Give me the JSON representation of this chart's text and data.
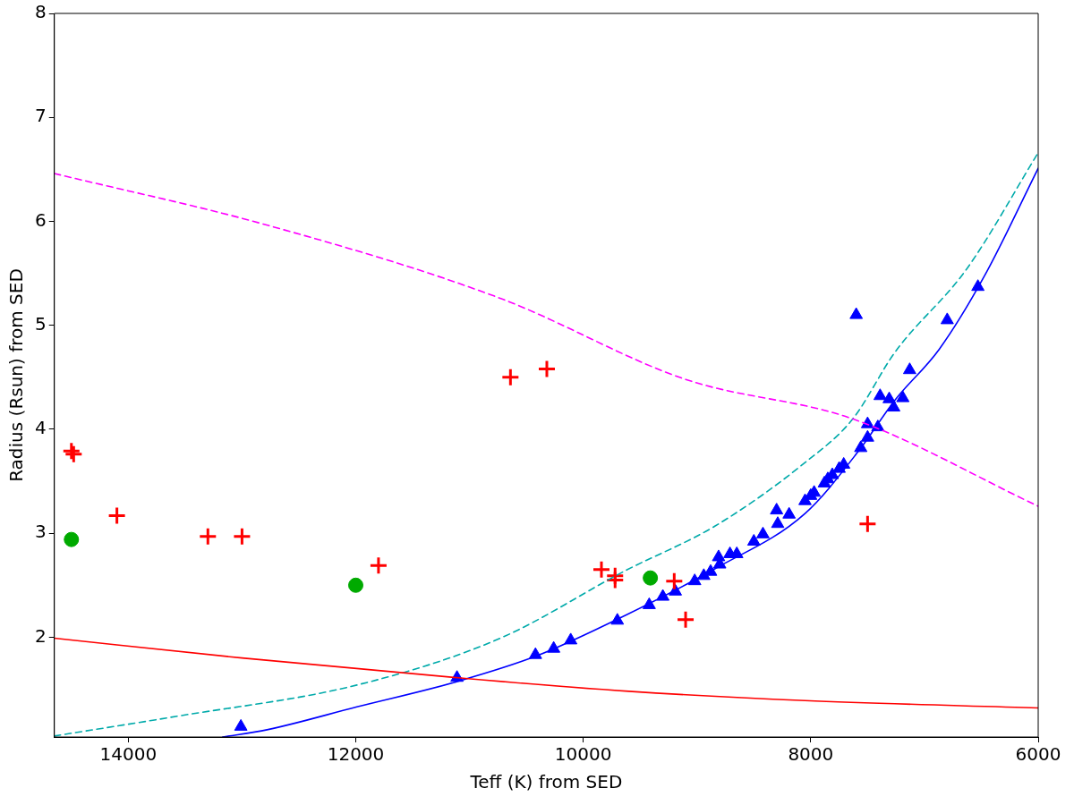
{
  "chart_data": {
    "type": "scatter",
    "xlabel": "Teff (K) from SED",
    "ylabel": "Radius (Rsun) from SED",
    "xlim": [
      14650,
      6000
    ],
    "ylim": [
      1.04,
      8
    ],
    "xticks": [
      14000,
      12000,
      10000,
      8000,
      6000
    ],
    "yticks": [
      2,
      3,
      4,
      5,
      6,
      7,
      8
    ],
    "series": [
      {
        "type": "line",
        "color": "#ff0000",
        "line_style": "solid",
        "marker": "none",
        "x": [
          14650,
          13000,
          11100,
          9600,
          8050,
          6000
        ],
        "values": [
          1.99,
          1.8,
          1.61,
          1.48,
          1.39,
          1.32
        ]
      },
      {
        "type": "line",
        "color": "#ff00ff",
        "line_style": "dashed",
        "marker": "none",
        "x": [
          14650,
          12800,
          10730,
          9100,
          7630,
          6000
        ],
        "values": [
          6.46,
          5.97,
          5.26,
          4.48,
          4.1,
          3.26
        ]
      },
      {
        "type": "line",
        "color": "#00aaaa",
        "line_style": "dashed",
        "marker": "none",
        "x": [
          14650,
          13570,
          11990,
          10730,
          9630,
          8840,
          8050,
          7630,
          7260,
          6630,
          6000
        ],
        "values": [
          1.05,
          1.24,
          1.54,
          1.99,
          2.64,
          3.07,
          3.68,
          4.1,
          4.74,
          5.54,
          6.66
        ]
      },
      {
        "type": "line",
        "color": "#0000ff",
        "line_style": "solid",
        "marker": "none",
        "x": [
          13170,
          12780,
          11990,
          11120,
          10410,
          9630,
          8840,
          8050,
          7580,
          7260,
          6870,
          6470,
          6000
        ],
        "values": [
          1.04,
          1.11,
          1.33,
          1.57,
          1.82,
          2.21,
          2.66,
          3.19,
          3.79,
          4.28,
          4.77,
          5.48,
          6.51
        ]
      },
      {
        "type": "scatter",
        "color": "#ff0000",
        "marker": "cross",
        "x": [
          14500,
          14480,
          14100,
          13300,
          13000,
          11800,
          10640,
          10320,
          9840,
          9720,
          9720,
          9200,
          9100,
          7500
        ],
        "values": [
          3.79,
          3.76,
          3.17,
          2.97,
          2.97,
          2.69,
          4.5,
          4.58,
          2.65,
          2.59,
          2.55,
          2.54,
          2.17,
          3.09
        ]
      },
      {
        "type": "scatter",
        "color": "#00aa00",
        "marker": "circle",
        "x": [
          14500,
          12000,
          9410
        ],
        "values": [
          2.94,
          2.5,
          2.57
        ]
      },
      {
        "type": "scatter",
        "color": "#0000ff",
        "marker": "triangle",
        "x": [
          13010,
          11110,
          10420,
          10260,
          10110,
          9700,
          9420,
          9300,
          9190,
          9020,
          8940,
          8880,
          8800,
          8810,
          8710,
          8650,
          8500,
          8420,
          8300,
          8190,
          8290,
          8050,
          8000,
          7970,
          7880,
          7850,
          7810,
          7750,
          7710,
          7600,
          7560,
          7500,
          7500,
          7410,
          7390,
          7310,
          7270,
          7190,
          7130,
          6800,
          6530
        ],
        "values": [
          1.14,
          1.61,
          1.83,
          1.89,
          1.97,
          2.16,
          2.31,
          2.39,
          2.44,
          2.54,
          2.59,
          2.63,
          2.7,
          2.77,
          2.8,
          2.8,
          2.92,
          2.99,
          3.22,
          3.18,
          3.09,
          3.31,
          3.36,
          3.39,
          3.48,
          3.52,
          3.56,
          3.62,
          3.66,
          5.1,
          3.82,
          4.05,
          3.92,
          4.02,
          4.32,
          4.29,
          4.21,
          4.3,
          4.57,
          5.05,
          5.37
        ]
      }
    ]
  }
}
